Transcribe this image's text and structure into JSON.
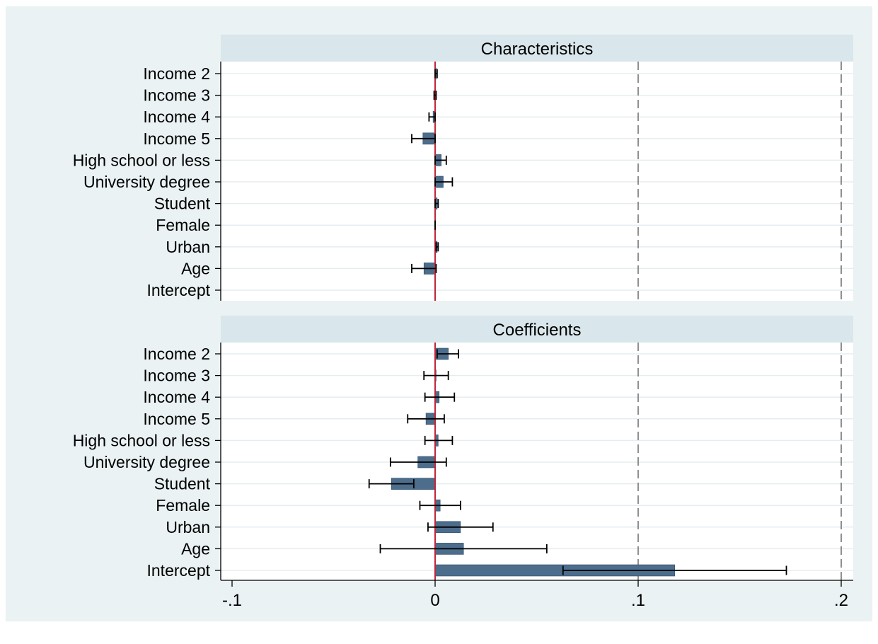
{
  "chart_data": {
    "type": "bar",
    "orientation": "horizontal",
    "x_ticks": [
      {
        "value": -0.1,
        "label": "-.1"
      },
      {
        "value": 0,
        "label": "0"
      },
      {
        "value": 0.1,
        "label": ".1"
      },
      {
        "value": 0.2,
        "label": ".2"
      }
    ],
    "xlim": [
      -0.103,
      0.207
    ],
    "reference_lines": [
      {
        "value": 0,
        "style": "solid",
        "color": "#c0263a"
      },
      {
        "value": 0.1,
        "style": "dashed",
        "color": "#555555"
      },
      {
        "value": 0.2,
        "style": "dashed",
        "color": "#555555"
      }
    ],
    "grid": true,
    "colors": {
      "outer_bg": "#eaf2f3",
      "plot_bg": "#ffffff",
      "strip_bg": "#d9e6eb",
      "bar": "#4c6d8c",
      "bar_edge": "#2f4a66",
      "grid": "#e6edf0",
      "error_bar": "#000000",
      "text": "#000000"
    },
    "panels": [
      {
        "title": "Characteristics",
        "categories": [
          "Income 2",
          "Income 3",
          "Income 4",
          "Income 5",
          "High school or less",
          "University degree",
          "Student",
          "Female",
          "Urban",
          "Age",
          "Intercept"
        ],
        "values": [
          0.0005,
          0.0,
          -0.001,
          -0.006,
          0.003,
          0.004,
          0.001,
          0.0,
          0.001,
          -0.0055,
          null
        ],
        "ci_low": [
          0.0,
          -0.0005,
          -0.003,
          -0.0115,
          0.0,
          0.0,
          0.0,
          0.0,
          0.0005,
          -0.0115,
          null
        ],
        "ci_high": [
          0.001,
          0.0005,
          0.0,
          0.0,
          0.0055,
          0.0085,
          0.0015,
          0.0,
          0.0015,
          0.0005,
          null
        ]
      },
      {
        "title": "Coefficients",
        "categories": [
          "Income 2",
          "Income 3",
          "Income 4",
          "Income 5",
          "High school or less",
          "University degree",
          "Student",
          "Female",
          "Urban",
          "Age",
          "Intercept"
        ],
        "values": [
          0.0065,
          0.0005,
          0.002,
          -0.0045,
          0.0015,
          -0.0085,
          -0.0215,
          0.0025,
          0.0125,
          0.014,
          0.118
        ],
        "ci_low": [
          0.001,
          -0.0055,
          -0.005,
          -0.0135,
          -0.005,
          -0.022,
          -0.0325,
          -0.0075,
          -0.0035,
          -0.027,
          0.063
        ],
        "ci_high": [
          0.0115,
          0.0065,
          0.0095,
          0.0045,
          0.0085,
          0.0055,
          -0.0105,
          0.0125,
          0.0285,
          0.055,
          0.173
        ]
      }
    ]
  }
}
